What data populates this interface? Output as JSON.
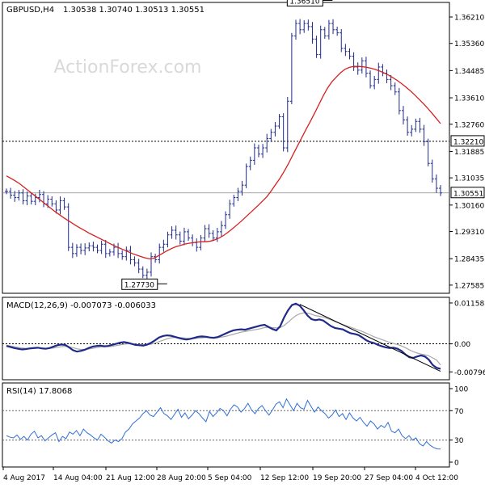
{
  "chart_data": [
    {
      "panel": "price",
      "type": "ohlc",
      "title": "GBPUSD,H4",
      "ohlc_header": "1.30538 1.30740 1.30513 1.30551",
      "watermark": "ActionForex.com",
      "last_price": 1.30551,
      "last_price_label": "1.30551",
      "y_ticks": [
        "1.36210",
        "1.35360",
        "1.34485",
        "1.33610",
        "1.32760",
        "1.31885",
        "1.31035",
        "1.30160",
        "1.29310",
        "1.28435",
        "1.27585"
      ],
      "ylim": [
        1.274,
        1.366
      ],
      "level_line": {
        "value": 1.3221,
        "label": "1.32210"
      },
      "last_line": {
        "value": 1.30551
      },
      "annotations": [
        {
          "text": "1.36510",
          "value": 1.3651,
          "index": 73
        },
        {
          "text": "1.27730",
          "value": 1.2773,
          "index": 33
        }
      ],
      "series": [
        {
          "name": "close",
          "values": [
            1.306,
            1.3048,
            1.304,
            1.3055,
            1.303,
            1.3045,
            1.3028,
            1.304,
            1.305,
            1.302,
            1.3035,
            1.302,
            1.3,
            1.303,
            1.301,
            1.288,
            1.286,
            1.288,
            1.287,
            1.2878,
            1.2885,
            1.288,
            1.287,
            1.289,
            1.286,
            1.2865,
            1.288,
            1.286,
            1.285,
            1.287,
            1.284,
            1.283,
            1.281,
            1.279,
            1.28,
            1.285,
            1.284,
            1.288,
            1.289,
            1.292,
            1.2935,
            1.292,
            1.29,
            1.293,
            1.291,
            1.2895,
            1.288,
            1.291,
            1.294,
            1.2925,
            1.291,
            1.293,
            1.295,
            1.2985,
            1.302,
            1.304,
            1.306,
            1.308,
            1.314,
            1.316,
            1.32,
            1.318,
            1.32,
            1.323,
            1.325,
            1.327,
            1.33,
            1.32,
            1.335,
            1.356,
            1.36,
            1.358,
            1.36,
            1.359,
            1.355,
            1.35,
            1.358,
            1.356,
            1.36,
            1.358,
            1.357,
            1.352,
            1.351,
            1.3495,
            1.346,
            1.345,
            1.348,
            1.344,
            1.34,
            1.342,
            1.346,
            1.344,
            1.342,
            1.34,
            1.338,
            1.332,
            1.329,
            1.325,
            1.326,
            1.3285,
            1.326,
            1.322,
            1.315,
            1.31,
            1.307,
            1.30551
          ]
        },
        {
          "name": "ma",
          "color": "#d62020",
          "values": [
            1.311,
            1.3102,
            1.3094,
            1.3085,
            1.3074,
            1.3063,
            1.3052,
            1.3041,
            1.303,
            1.3019,
            1.3008,
            1.2997,
            1.2987,
            1.2977,
            1.2968,
            1.2959,
            1.295,
            1.2942,
            1.2934,
            1.2926,
            1.2919,
            1.2912,
            1.2905,
            1.2898,
            1.2891,
            1.2884,
            1.2878,
            1.2872,
            1.2866,
            1.286,
            1.2855,
            1.285,
            1.2846,
            1.2843,
            1.2845,
            1.2853,
            1.2861,
            1.2869,
            1.2876,
            1.2882,
            1.2886,
            1.289,
            1.2893,
            1.2895,
            1.2897,
            1.2898,
            1.2898,
            1.29,
            1.2904,
            1.291,
            1.2918,
            1.2928,
            1.2939,
            1.2951,
            1.2963,
            1.2976,
            1.2989,
            1.3002,
            1.3015,
            1.3029,
            1.3043,
            1.3062,
            1.3082,
            1.3102,
            1.3125,
            1.315,
            1.3178,
            1.3205,
            1.3232,
            1.3259,
            1.3285,
            1.3312,
            1.334,
            1.3368,
            1.3393,
            1.3413,
            1.3428,
            1.3442,
            1.3453,
            1.3459,
            1.3462,
            1.3462,
            1.3461,
            1.3459,
            1.3456,
            1.3452,
            1.3447,
            1.3441,
            1.3434,
            1.3426,
            1.3417,
            1.3407,
            1.3396,
            1.3384,
            1.3371,
            1.3357,
            1.3343,
            1.3328,
            1.3312,
            1.3295,
            1.3278
          ]
        }
      ]
    },
    {
      "panel": "macd",
      "type": "line",
      "title": "MACD(12,26,9) -0.007073 -0.006033",
      "y_ticks": [
        "0.011588",
        "0.00",
        "-0.007961"
      ],
      "ylim": [
        -0.0095,
        0.0125
      ],
      "trendline": {
        "from": {
          "index": 75,
          "value": 0.0112
        },
        "to": {
          "index": 111,
          "value": -0.0078
        }
      },
      "series": [
        {
          "name": "macd",
          "color": "#1f2a8a",
          "values": [
            -0.0006,
            -0.0009,
            -0.0012,
            -0.0014,
            -0.0016,
            -0.0015,
            -0.0013,
            -0.0012,
            -0.0011,
            -0.0013,
            -0.0014,
            -0.0012,
            -0.0008,
            -0.0004,
            -0.0002,
            -0.0003,
            -0.001,
            -0.0018,
            -0.0022,
            -0.002,
            -0.0017,
            -0.0012,
            -0.0008,
            -0.0006,
            -0.0005,
            -0.0007,
            -0.0006,
            -0.0003,
            0.0,
            0.0003,
            0.0005,
            0.0003,
            0.0,
            -0.0003,
            -0.0004,
            -0.0005,
            -0.0002,
            0.0003,
            0.001,
            0.0018,
            0.0022,
            0.0024,
            0.0023,
            0.002,
            0.0017,
            0.0014,
            0.0012,
            0.0014,
            0.0017,
            0.002,
            0.0021,
            0.002,
            0.0018,
            0.0017,
            0.0019,
            0.0024,
            0.0029,
            0.0034,
            0.0038,
            0.004,
            0.0041,
            0.004,
            0.0043,
            0.0046,
            0.0049,
            0.0052,
            0.0054,
            0.0048,
            0.0042,
            0.0038,
            0.005,
            0.0075,
            0.0095,
            0.011,
            0.0114,
            0.0108,
            0.0095,
            0.008,
            0.007,
            0.0067,
            0.0069,
            0.0066,
            0.0058,
            0.005,
            0.0045,
            0.0043,
            0.0041,
            0.0035,
            0.003,
            0.0028,
            0.0025,
            0.0018,
            0.001,
            0.0005,
            0.0002,
            -0.0003,
            -0.0007,
            -0.001,
            -0.0012,
            -0.0011,
            -0.0014,
            -0.002,
            -0.003,
            -0.0038,
            -0.004,
            -0.0036,
            -0.0033,
            -0.0036,
            -0.0045,
            -0.006,
            -0.0068,
            -0.0071
          ]
        },
        {
          "name": "signal",
          "color": "#a8a8a8",
          "values": [
            -0.0004,
            -0.0006,
            -0.0008,
            -0.001,
            -0.0012,
            -0.0013,
            -0.0013,
            -0.0013,
            -0.0012,
            -0.0012,
            -0.0013,
            -0.0013,
            -0.0012,
            -0.001,
            -0.0008,
            -0.0007,
            -0.0008,
            -0.0011,
            -0.0014,
            -0.0016,
            -0.0016,
            -0.0015,
            -0.0013,
            -0.0011,
            -0.0009,
            -0.0008,
            -0.0008,
            -0.0007,
            -0.0005,
            -0.0003,
            -0.0001,
            0.0,
            0.0,
            -0.0001,
            -0.0002,
            -0.0003,
            -0.0003,
            -0.0001,
            0.0002,
            0.0006,
            0.001,
            0.0014,
            0.0017,
            0.0018,
            0.0018,
            0.0017,
            0.0016,
            0.0015,
            0.0015,
            0.0016,
            0.0017,
            0.0018,
            0.0018,
            0.0018,
            0.0018,
            0.0019,
            0.0021,
            0.0024,
            0.0027,
            0.003,
            0.0033,
            0.0035,
            0.0037,
            0.0039,
            0.0041,
            0.0043,
            0.0046,
            0.0047,
            0.0046,
            0.0045,
            0.0046,
            0.0052,
            0.0061,
            0.0071,
            0.008,
            0.0085,
            0.0088,
            0.0087,
            0.0084,
            0.008,
            0.0078,
            0.0076,
            0.0072,
            0.0068,
            0.0063,
            0.0059,
            0.0055,
            0.0051,
            0.0047,
            0.0043,
            0.0039,
            0.0035,
            0.003,
            0.0025,
            0.002,
            0.0016,
            0.0012,
            0.0008,
            0.0004,
            0.0001,
            -0.0002,
            -0.0006,
            -0.0011,
            -0.0017,
            -0.0022,
            -0.0026,
            -0.0029,
            -0.0031,
            -0.0034,
            -0.004,
            -0.0046,
            -0.006
          ]
        }
      ]
    },
    {
      "panel": "rsi",
      "type": "line",
      "title": "RSI(14) 17.8068",
      "y_ticks": [
        "100",
        "70",
        "30",
        "0"
      ],
      "ylim": [
        0,
        100
      ],
      "levels": [
        70,
        30
      ],
      "series": [
        {
          "name": "rsi",
          "color": "#2f6fd6",
          "values": [
            36,
            34,
            33,
            37,
            31,
            35,
            30,
            38,
            42,
            33,
            36,
            29,
            33,
            37,
            40,
            28,
            35,
            32,
            41,
            38,
            43,
            36,
            45,
            40,
            37,
            33,
            30,
            38,
            34,
            29,
            26,
            30,
            28,
            32,
            41,
            45,
            52,
            56,
            60,
            66,
            70,
            64,
            62,
            68,
            74,
            66,
            63,
            58,
            65,
            72,
            61,
            67,
            59,
            64,
            70,
            66,
            60,
            55,
            69,
            62,
            67,
            73,
            70,
            63,
            72,
            78,
            75,
            68,
            73,
            80,
            71,
            66,
            73,
            77,
            70,
            64,
            71,
            79,
            82,
            74,
            86,
            78,
            70,
            80,
            74,
            72,
            84,
            76,
            68,
            75,
            70,
            66,
            60,
            64,
            71,
            62,
            66,
            58,
            67,
            60,
            56,
            61,
            54,
            49,
            56,
            52,
            45,
            50,
            47,
            54,
            42,
            40,
            45,
            36,
            32,
            36,
            30,
            33,
            25,
            22,
            28,
            23,
            20,
            18,
            17.8
          ]
        }
      ]
    }
  ],
  "x_axis": {
    "tick_labels": [
      "4 Aug 2017",
      "14 Aug 04:00",
      "21 Aug 12:00",
      "28 Aug 20:00",
      "5 Sep 04:00",
      "12 Sep 12:00",
      "19 Sep 20:00",
      "27 Sep 04:00",
      "4 Oct 12:00"
    ]
  },
  "colors": {
    "background": "#ffffff",
    "bars": "#1f2a8a",
    "ma": "#d62020",
    "macd": "#1f2a8a",
    "signal": "#a8a8a8",
    "rsi": "#2f6fd6",
    "level_label_bg": "#ffffff"
  }
}
